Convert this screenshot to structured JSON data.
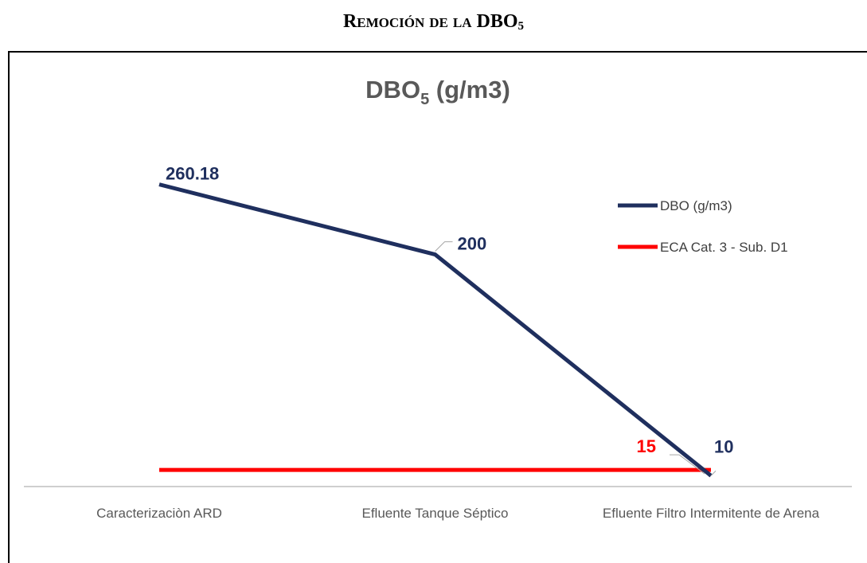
{
  "heading": "Remoción de la DBO",
  "heading_subscript": "5",
  "chart_data": {
    "type": "line",
    "title": "DBO",
    "title_subscript": "5",
    "title_suffix": " (g/m3)",
    "categories": [
      "Caracterizaciòn ARD",
      "Efluente Tanque Séptico",
      "Efluente Filtro Intermitente de Arena"
    ],
    "series": [
      {
        "name": "DBO (g/m3)",
        "color": "#1f2f5e",
        "values": [
          260.18,
          200,
          10
        ]
      },
      {
        "name": "ECA Cat. 3 - Sub. D1",
        "color": "#ff0000",
        "values": [
          15,
          15,
          15
        ]
      }
    ],
    "ylim": [
      0,
      300
    ],
    "legend": "right"
  }
}
